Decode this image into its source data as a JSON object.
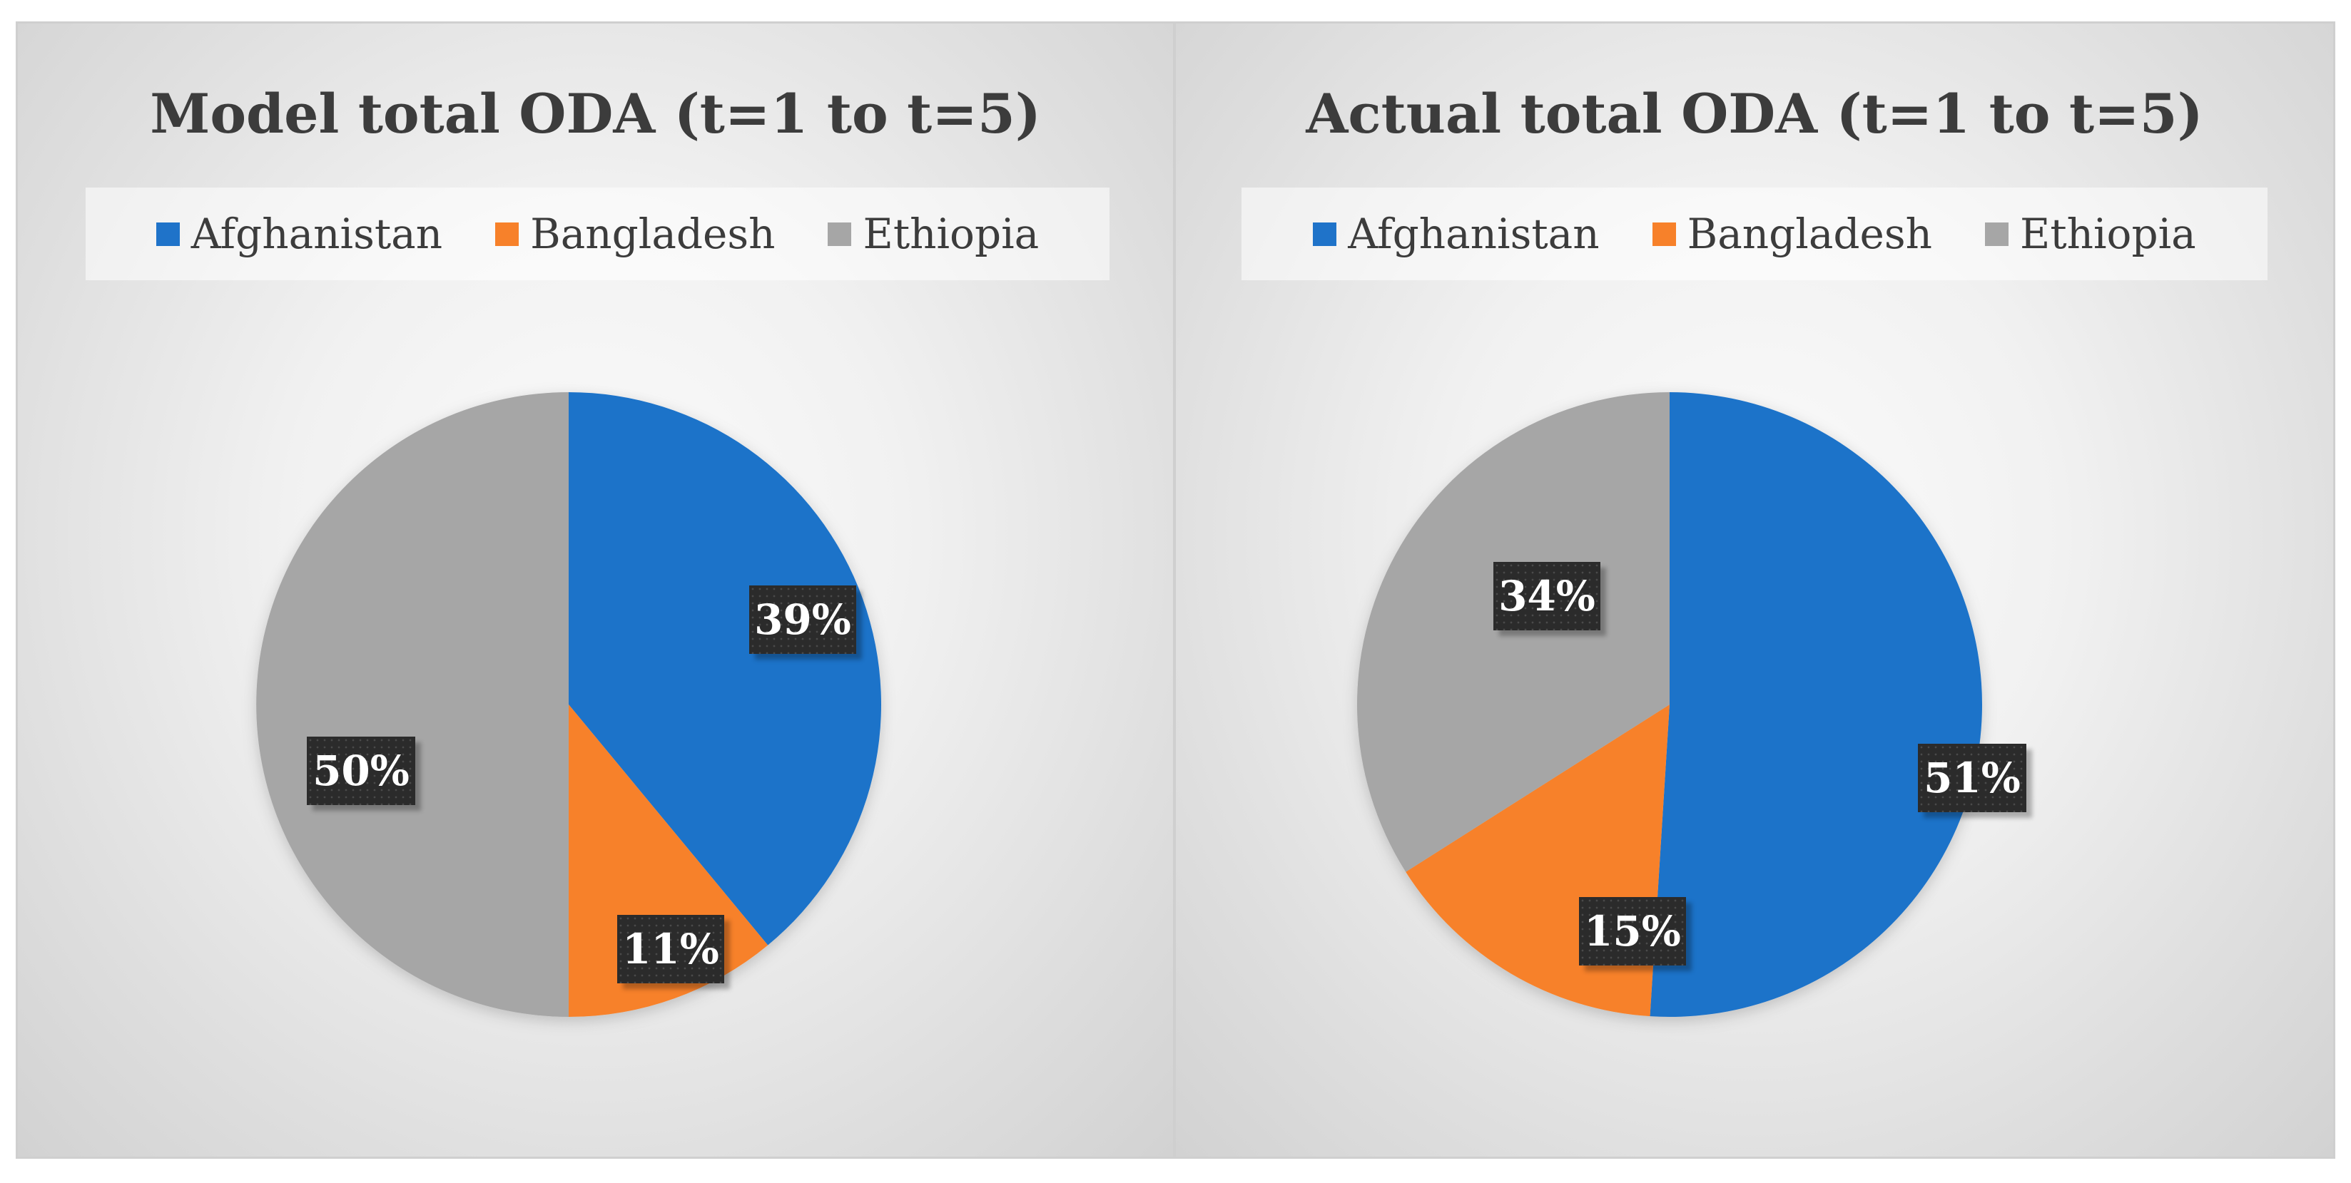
{
  "chart_data": [
    {
      "type": "pie",
      "title": "Model total ODA (t=1 to t=5)",
      "categories": [
        "Afghanistan",
        "Bangladesh",
        "Ethiopia"
      ],
      "values": [
        39,
        11,
        50
      ],
      "labels": [
        "39%",
        "11%",
        "50%"
      ],
      "colors": [
        "#1f73c9",
        "#f7812a",
        "#a6a6a6"
      ],
      "legend": "top"
    },
    {
      "type": "pie",
      "title": "Actual total ODA (t=1 to t=5)",
      "categories": [
        "Afghanistan",
        "Bangladesh",
        "Ethiopia"
      ],
      "values": [
        51,
        15,
        34
      ],
      "labels": [
        "51%",
        "15%",
        "34%"
      ],
      "colors": [
        "#1f73c9",
        "#f7812a",
        "#a6a6a6"
      ],
      "legend": "top"
    }
  ]
}
